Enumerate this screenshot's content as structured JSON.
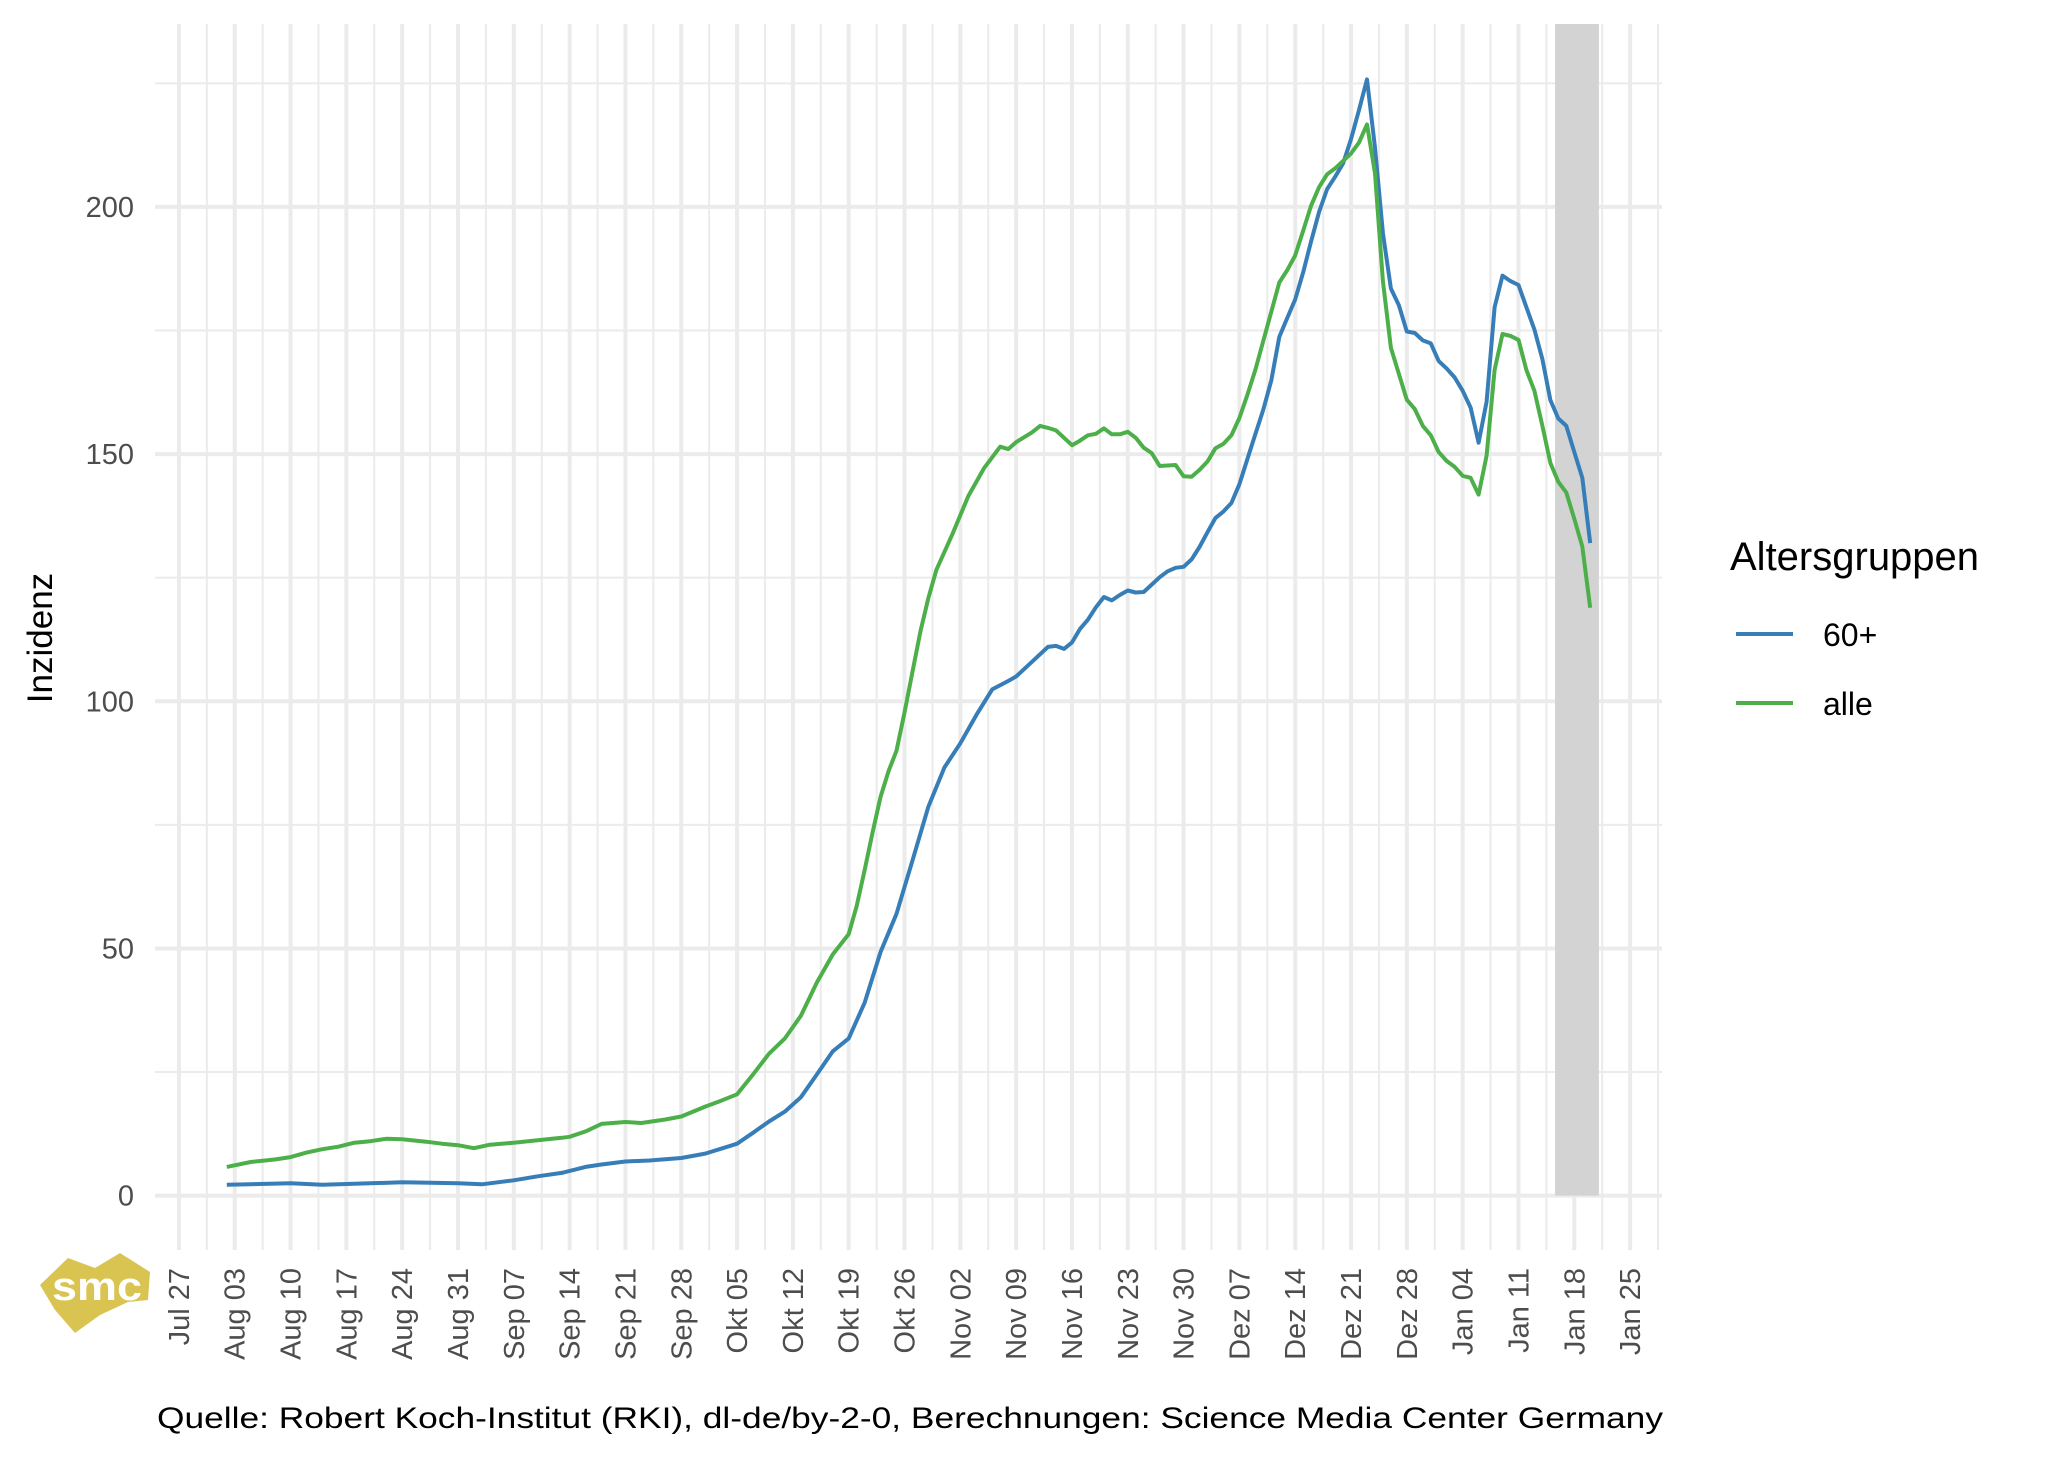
{
  "chart_data": {
    "type": "line",
    "title": "",
    "xlabel": "",
    "ylabel": "Inzidenz",
    "caption": "Quelle: Robert Koch-Institut (RKI), dl-de/by-2-0, Berechnungen: Science Media Center Germany",
    "logo_text": "smc",
    "ylim": [
      -11,
      237
    ],
    "xlim": [
      "2020-07-24",
      "2021-01-29"
    ],
    "yticks": [
      0,
      50,
      100,
      150,
      200
    ],
    "ytick_labels": [
      "0",
      "50",
      "100",
      "150",
      "200"
    ],
    "y_minor": [
      25,
      75,
      125,
      175,
      225
    ],
    "xticks": [
      {
        "date": "2020-07-27",
        "label": "Jul 27"
      },
      {
        "date": "2020-08-03",
        "label": "Aug 03"
      },
      {
        "date": "2020-08-10",
        "label": "Aug 10"
      },
      {
        "date": "2020-08-17",
        "label": "Aug 17"
      },
      {
        "date": "2020-08-24",
        "label": "Aug 24"
      },
      {
        "date": "2020-08-31",
        "label": "Aug 31"
      },
      {
        "date": "2020-09-07",
        "label": "Sep 07"
      },
      {
        "date": "2020-09-14",
        "label": "Sep 14"
      },
      {
        "date": "2020-09-21",
        "label": "Sep 21"
      },
      {
        "date": "2020-09-28",
        "label": "Sep 28"
      },
      {
        "date": "2020-10-05",
        "label": "Okt 05"
      },
      {
        "date": "2020-10-12",
        "label": "Okt 12"
      },
      {
        "date": "2020-10-19",
        "label": "Okt 19"
      },
      {
        "date": "2020-10-26",
        "label": "Okt 26"
      },
      {
        "date": "2020-11-02",
        "label": "Nov 02"
      },
      {
        "date": "2020-11-09",
        "label": "Nov 09"
      },
      {
        "date": "2020-11-16",
        "label": "Nov 16"
      },
      {
        "date": "2020-11-23",
        "label": "Nov 23"
      },
      {
        "date": "2020-11-30",
        "label": "Nov 30"
      },
      {
        "date": "2020-12-07",
        "label": "Dez 07"
      },
      {
        "date": "2020-12-14",
        "label": "Dez 14"
      },
      {
        "date": "2020-12-21",
        "label": "Dez 21"
      },
      {
        "date": "2020-12-28",
        "label": "Dez 28"
      },
      {
        "date": "2021-01-04",
        "label": "Jan 04"
      },
      {
        "date": "2021-01-11",
        "label": "Jan 11"
      },
      {
        "date": "2021-01-18",
        "label": "Jan 18"
      },
      {
        "date": "2021-01-25",
        "label": "Jan 25"
      }
    ],
    "grid": true,
    "shaded_band": {
      "from": "2021-01-15T14:00",
      "to": "2021-01-21T02:00",
      "ymin": 0,
      "color": "#d3d3d3"
    },
    "legend": {
      "title": "Altersgruppen",
      "position": "right"
    },
    "series": [
      {
        "name": "60+",
        "color": "#377eb8",
        "points": [
          [
            "2020-08-02",
            2.2
          ],
          [
            "2020-08-10",
            2.5
          ],
          [
            "2020-08-14",
            2.2
          ],
          [
            "2020-08-20",
            2.5
          ],
          [
            "2020-08-24",
            2.7
          ],
          [
            "2020-08-31",
            2.5
          ],
          [
            "2020-09-03",
            2.3
          ],
          [
            "2020-09-07",
            3.1
          ],
          [
            "2020-09-10",
            3.9
          ],
          [
            "2020-09-13",
            4.6
          ],
          [
            "2020-09-16",
            5.8
          ],
          [
            "2020-09-18",
            6.3
          ],
          [
            "2020-09-21",
            6.9
          ],
          [
            "2020-09-24",
            7.1
          ],
          [
            "2020-09-28",
            7.6
          ],
          [
            "2020-10-01",
            8.5
          ],
          [
            "2020-10-03",
            9.5
          ],
          [
            "2020-10-05",
            10.5
          ],
          [
            "2020-10-07",
            12.7
          ],
          [
            "2020-10-09",
            15.0
          ],
          [
            "2020-10-11",
            17.0
          ],
          [
            "2020-10-13",
            19.9
          ],
          [
            "2020-10-15",
            24.5
          ],
          [
            "2020-10-17",
            29.2
          ],
          [
            "2020-10-19",
            31.8
          ],
          [
            "2020-10-21",
            39.0
          ],
          [
            "2020-10-23",
            49.3
          ],
          [
            "2020-10-25",
            57.0
          ],
          [
            "2020-10-27",
            67.8
          ],
          [
            "2020-10-29",
            78.7
          ],
          [
            "2020-10-31",
            86.6
          ],
          [
            "2020-11-02",
            91.5
          ],
          [
            "2020-11-04",
            97.2
          ],
          [
            "2020-11-06",
            102.4
          ],
          [
            "2020-11-08",
            104.1
          ],
          [
            "2020-11-09",
            105.0
          ],
          [
            "2020-11-11",
            108.0
          ],
          [
            "2020-11-13",
            111.0
          ],
          [
            "2020-11-14",
            111.2
          ],
          [
            "2020-11-15",
            110.6
          ],
          [
            "2020-11-16",
            111.9
          ],
          [
            "2020-11-17",
            114.6
          ],
          [
            "2020-11-18",
            116.5
          ],
          [
            "2020-11-19",
            119.0
          ],
          [
            "2020-11-20",
            121.1
          ],
          [
            "2020-11-21",
            120.4
          ],
          [
            "2020-11-22",
            121.5
          ],
          [
            "2020-11-23",
            122.4
          ],
          [
            "2020-11-24",
            122.0
          ],
          [
            "2020-11-25",
            122.1
          ],
          [
            "2020-11-26",
            123.6
          ],
          [
            "2020-11-27",
            125.1
          ],
          [
            "2020-11-28",
            126.3
          ],
          [
            "2020-11-29",
            127.0
          ],
          [
            "2020-11-30",
            127.2
          ],
          [
            "2020-12-01",
            128.7
          ],
          [
            "2020-12-02",
            131.2
          ],
          [
            "2020-12-03",
            134.2
          ],
          [
            "2020-12-04",
            137.1
          ],
          [
            "2020-12-05",
            138.4
          ],
          [
            "2020-12-06",
            140.1
          ],
          [
            "2020-12-07",
            143.9
          ],
          [
            "2020-12-08",
            149.0
          ],
          [
            "2020-12-09",
            154.0
          ],
          [
            "2020-12-10",
            159.0
          ],
          [
            "2020-12-11",
            164.9
          ],
          [
            "2020-12-12",
            173.7
          ],
          [
            "2020-12-13",
            177.5
          ],
          [
            "2020-12-14",
            181.3
          ],
          [
            "2020-12-15",
            186.8
          ],
          [
            "2020-12-16",
            193.1
          ],
          [
            "2020-12-17",
            199.0
          ],
          [
            "2020-12-18",
            203.6
          ],
          [
            "2020-12-19",
            206.1
          ],
          [
            "2020-12-20",
            208.8
          ],
          [
            "2020-12-21",
            213.7
          ],
          [
            "2020-12-22",
            219.6
          ],
          [
            "2020-12-23",
            225.8
          ],
          [
            "2020-12-24",
            212.0
          ],
          [
            "2020-12-25",
            194.7
          ],
          [
            "2020-12-26",
            183.5
          ],
          [
            "2020-12-27",
            180.1
          ],
          [
            "2020-12-28",
            174.8
          ],
          [
            "2020-12-29",
            174.5
          ],
          [
            "2020-12-30",
            173.0
          ],
          [
            "2020-12-31",
            172.4
          ],
          [
            "2021-01-01",
            168.8
          ],
          [
            "2021-01-02",
            167.3
          ],
          [
            "2021-01-03",
            165.5
          ],
          [
            "2021-01-04",
            162.8
          ],
          [
            "2021-01-05",
            159.4
          ],
          [
            "2021-01-06",
            152.3
          ],
          [
            "2021-01-07",
            160.6
          ],
          [
            "2021-01-08",
            179.7
          ],
          [
            "2021-01-09",
            186.1
          ],
          [
            "2021-01-10",
            185.0
          ],
          [
            "2021-01-11",
            184.2
          ],
          [
            "2021-01-12",
            179.7
          ],
          [
            "2021-01-13",
            175.2
          ],
          [
            "2021-01-14",
            169.2
          ],
          [
            "2021-01-15",
            160.9
          ],
          [
            "2021-01-16",
            157.2
          ],
          [
            "2021-01-17",
            155.7
          ],
          [
            "2021-01-18",
            150.4
          ],
          [
            "2021-01-19",
            145.2
          ],
          [
            "2021-01-20",
            132.0
          ]
        ]
      },
      {
        "name": "alle",
        "color": "#4daf4a",
        "points": [
          [
            "2020-08-02",
            5.8
          ],
          [
            "2020-08-05",
            6.8
          ],
          [
            "2020-08-08",
            7.3
          ],
          [
            "2020-08-10",
            7.8
          ],
          [
            "2020-08-12",
            8.7
          ],
          [
            "2020-08-14",
            9.4
          ],
          [
            "2020-08-16",
            9.9
          ],
          [
            "2020-08-18",
            10.7
          ],
          [
            "2020-08-20",
            11.0
          ],
          [
            "2020-08-22",
            11.5
          ],
          [
            "2020-08-24",
            11.4
          ],
          [
            "2020-08-27",
            10.9
          ],
          [
            "2020-08-29",
            10.5
          ],
          [
            "2020-08-31",
            10.2
          ],
          [
            "2020-09-02",
            9.6
          ],
          [
            "2020-09-04",
            10.3
          ],
          [
            "2020-09-07",
            10.7
          ],
          [
            "2020-09-10",
            11.2
          ],
          [
            "2020-09-13",
            11.7
          ],
          [
            "2020-09-14",
            11.9
          ],
          [
            "2020-09-16",
            13.0
          ],
          [
            "2020-09-18",
            14.5
          ],
          [
            "2020-09-21",
            14.9
          ],
          [
            "2020-09-23",
            14.7
          ],
          [
            "2020-09-26",
            15.4
          ],
          [
            "2020-09-28",
            16.0
          ],
          [
            "2020-10-01",
            18.0
          ],
          [
            "2020-10-03",
            19.2
          ],
          [
            "2020-10-05",
            20.5
          ],
          [
            "2020-10-07",
            24.5
          ],
          [
            "2020-10-09",
            28.7
          ],
          [
            "2020-10-11",
            31.8
          ],
          [
            "2020-10-13",
            36.4
          ],
          [
            "2020-10-15",
            43.1
          ],
          [
            "2020-10-17",
            48.8
          ],
          [
            "2020-10-19",
            52.9
          ],
          [
            "2020-10-20",
            58.6
          ],
          [
            "2020-10-21",
            65.8
          ],
          [
            "2020-10-22",
            73.5
          ],
          [
            "2020-10-23",
            80.7
          ],
          [
            "2020-10-24",
            85.9
          ],
          [
            "2020-10-25",
            90.0
          ],
          [
            "2020-10-26",
            97.7
          ],
          [
            "2020-10-27",
            106.0
          ],
          [
            "2020-10-28",
            114.2
          ],
          [
            "2020-10-29",
            120.9
          ],
          [
            "2020-10-30",
            126.6
          ],
          [
            "2020-11-01",
            133.8
          ],
          [
            "2020-11-03",
            141.5
          ],
          [
            "2020-11-05",
            147.2
          ],
          [
            "2020-11-07",
            151.5
          ],
          [
            "2020-11-08",
            151.0
          ],
          [
            "2020-11-09",
            152.4
          ],
          [
            "2020-11-11",
            154.4
          ],
          [
            "2020-11-12",
            155.7
          ],
          [
            "2020-11-13",
            155.3
          ],
          [
            "2020-11-14",
            154.8
          ],
          [
            "2020-11-16",
            151.8
          ],
          [
            "2020-11-17",
            152.7
          ],
          [
            "2020-11-18",
            153.8
          ],
          [
            "2020-11-19",
            154.1
          ],
          [
            "2020-11-20",
            155.2
          ],
          [
            "2020-11-21",
            154.0
          ],
          [
            "2020-11-22",
            154.0
          ],
          [
            "2020-11-23",
            154.5
          ],
          [
            "2020-11-24",
            153.3
          ],
          [
            "2020-11-25",
            151.3
          ],
          [
            "2020-11-26",
            150.2
          ],
          [
            "2020-11-27",
            147.6
          ],
          [
            "2020-11-29",
            147.8
          ],
          [
            "2020-11-30",
            145.5
          ],
          [
            "2020-12-01",
            145.4
          ],
          [
            "2020-12-02",
            146.8
          ],
          [
            "2020-12-03",
            148.5
          ],
          [
            "2020-12-04",
            151.2
          ],
          [
            "2020-12-05",
            152.1
          ],
          [
            "2020-12-06",
            153.8
          ],
          [
            "2020-12-07",
            157.3
          ],
          [
            "2020-12-08",
            162.0
          ],
          [
            "2020-12-09",
            167.0
          ],
          [
            "2020-12-10",
            172.9
          ],
          [
            "2020-12-11",
            178.8
          ],
          [
            "2020-12-12",
            184.7
          ],
          [
            "2020-12-13",
            187.2
          ],
          [
            "2020-12-14",
            190.2
          ],
          [
            "2020-12-15",
            195.2
          ],
          [
            "2020-12-16",
            200.3
          ],
          [
            "2020-12-17",
            204.0
          ],
          [
            "2020-12-18",
            206.6
          ],
          [
            "2020-12-19",
            207.8
          ],
          [
            "2020-12-20",
            209.3
          ],
          [
            "2020-12-21",
            210.8
          ],
          [
            "2020-12-22",
            213.0
          ],
          [
            "2020-12-23",
            216.7
          ],
          [
            "2020-12-24",
            206.8
          ],
          [
            "2020-12-25",
            185.0
          ],
          [
            "2020-12-26",
            171.5
          ],
          [
            "2020-12-27",
            166.2
          ],
          [
            "2020-12-28",
            161.0
          ],
          [
            "2020-12-29",
            159.1
          ],
          [
            "2020-12-30",
            155.7
          ],
          [
            "2020-12-31",
            153.8
          ],
          [
            "2021-01-01",
            150.4
          ],
          [
            "2021-01-02",
            148.6
          ],
          [
            "2021-01-03",
            147.4
          ],
          [
            "2021-01-04",
            145.6
          ],
          [
            "2021-01-05",
            145.2
          ],
          [
            "2021-01-06",
            141.8
          ],
          [
            "2021-01-07",
            149.7
          ],
          [
            "2021-01-08",
            167.0
          ],
          [
            "2021-01-09",
            174.3
          ],
          [
            "2021-01-10",
            173.9
          ],
          [
            "2021-01-11",
            173.1
          ],
          [
            "2021-01-12",
            167.0
          ],
          [
            "2021-01-13",
            162.8
          ],
          [
            "2021-01-14",
            155.7
          ],
          [
            "2021-01-15",
            148.2
          ],
          [
            "2021-01-16",
            144.4
          ],
          [
            "2021-01-17",
            142.2
          ],
          [
            "2021-01-18",
            136.9
          ],
          [
            "2021-01-19",
            131.3
          ],
          [
            "2021-01-20",
            118.9
          ]
        ]
      }
    ]
  }
}
